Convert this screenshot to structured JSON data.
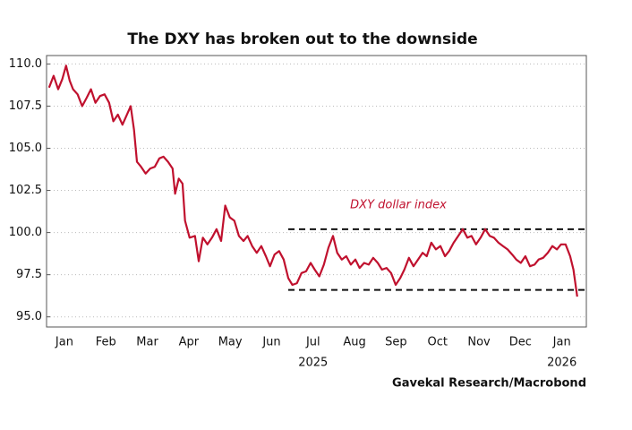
{
  "chart_data": {
    "type": "line",
    "title": "The DXY has broken out to the downside",
    "annotation": "DXY dollar index",
    "source": "Gavekal Research/Macrobond",
    "x": [
      0.13,
      0.24,
      0.35,
      0.45,
      0.54,
      0.63,
      0.71,
      0.82,
      0.93,
      1.04,
      1.14,
      1.25,
      1.36,
      1.47,
      1.58,
      1.68,
      1.79,
      1.9,
      2.01,
      2.1,
      2.18,
      2.25,
      2.35,
      2.46,
      2.57,
      2.68,
      2.79,
      2.89,
      3.0,
      3.11,
      3.17,
      3.26,
      3.35,
      3.41,
      3.52,
      3.65,
      3.74,
      3.84,
      3.95,
      4.06,
      4.17,
      4.28,
      4.38,
      4.49,
      4.6,
      4.71,
      4.82,
      4.92,
      5.03,
      5.14,
      5.25,
      5.36,
      5.46,
      5.57,
      5.68,
      5.79,
      5.9,
      6.0,
      6.11,
      6.22,
      6.33,
      6.44,
      6.54,
      6.65,
      6.76,
      6.87,
      6.98,
      7.08,
      7.19,
      7.3,
      7.41,
      7.52,
      7.62,
      7.73,
      7.84,
      7.95,
      8.06,
      8.16,
      8.27,
      8.38,
      8.49,
      8.6,
      8.7,
      8.81,
      8.92,
      9.03,
      9.14,
      9.24,
      9.35,
      9.46,
      9.57,
      9.68,
      9.78,
      9.89,
      10.0,
      10.11,
      10.22,
      10.32,
      10.43,
      10.54,
      10.65,
      10.76,
      10.86,
      10.97,
      11.08,
      11.19,
      11.3,
      11.4,
      11.51,
      11.62,
      11.73,
      11.84,
      11.94,
      12.05,
      12.16,
      12.27,
      12.38,
      12.48,
      12.59,
      12.7,
      12.78,
      12.87
    ],
    "series": [
      {
        "name": "DXY dollar index",
        "color": "#c0112e",
        "values": [
          108.6,
          109.3,
          108.5,
          109.1,
          109.9,
          109.0,
          108.5,
          108.2,
          107.5,
          108.0,
          108.5,
          107.7,
          108.1,
          108.2,
          107.7,
          106.6,
          107.0,
          106.4,
          107.0,
          107.5,
          106.1,
          104.2,
          103.9,
          103.5,
          103.8,
          103.9,
          104.4,
          104.5,
          104.2,
          103.8,
          102.3,
          103.2,
          102.9,
          100.7,
          99.7,
          99.8,
          98.3,
          99.7,
          99.3,
          99.7,
          100.2,
          99.5,
          101.6,
          100.9,
          100.7,
          99.8,
          99.5,
          99.8,
          99.2,
          98.8,
          99.2,
          98.6,
          98.0,
          98.7,
          98.9,
          98.4,
          97.3,
          96.9,
          97.0,
          97.6,
          97.7,
          98.2,
          97.8,
          97.4,
          98.1,
          99.1,
          99.8,
          98.8,
          98.4,
          98.6,
          98.1,
          98.4,
          97.9,
          98.2,
          98.1,
          98.5,
          98.2,
          97.8,
          97.9,
          97.6,
          96.9,
          97.3,
          97.8,
          98.5,
          98.0,
          98.4,
          98.8,
          98.6,
          99.4,
          99.0,
          99.2,
          98.6,
          98.9,
          99.4,
          99.8,
          100.2,
          99.7,
          99.8,
          99.3,
          99.7,
          100.2,
          99.8,
          99.7,
          99.4,
          99.2,
          99.0,
          98.7,
          98.4,
          98.2,
          98.6,
          98.0,
          98.1,
          98.4,
          98.5,
          98.8,
          99.2,
          99.0,
          99.3,
          99.3,
          98.6,
          97.8,
          96.2
        ]
      }
    ],
    "xlim": [
      0.07,
      13.09
    ],
    "xticks": [
      {
        "value": 0.5,
        "label": "Jan"
      },
      {
        "value": 1.5,
        "label": "Feb"
      },
      {
        "value": 2.5,
        "label": "Mar"
      },
      {
        "value": 3.5,
        "label": "Apr"
      },
      {
        "value": 4.5,
        "label": "May"
      },
      {
        "value": 5.5,
        "label": "Jun"
      },
      {
        "value": 6.5,
        "label": "Jul"
      },
      {
        "value": 7.5,
        "label": "Aug"
      },
      {
        "value": 8.5,
        "label": "Sep"
      },
      {
        "value": 9.5,
        "label": "Oct"
      },
      {
        "value": 10.5,
        "label": "Nov"
      },
      {
        "value": 11.5,
        "label": "Dec"
      },
      {
        "value": 12.5,
        "label": "Jan"
      }
    ],
    "year_labels": [
      {
        "value": 6.5,
        "label": "2025"
      },
      {
        "value": 12.5,
        "label": "2026"
      }
    ],
    "ylim": [
      94.4,
      110.5
    ],
    "yticks": [
      {
        "value": 95,
        "label": "95.0"
      },
      {
        "value": 97.5,
        "label": "97.5"
      },
      {
        "value": 100,
        "label": "100.0"
      },
      {
        "value": 102.5,
        "label": "102.5"
      },
      {
        "value": 105,
        "label": "105.0"
      },
      {
        "value": 107.5,
        "label": "107.5"
      },
      {
        "value": 110,
        "label": "110.0"
      }
    ],
    "reference_lines": [
      {
        "value": 100.2,
        "from": 5.9
      },
      {
        "value": 96.6,
        "from": 5.9
      }
    ],
    "grid": true
  }
}
